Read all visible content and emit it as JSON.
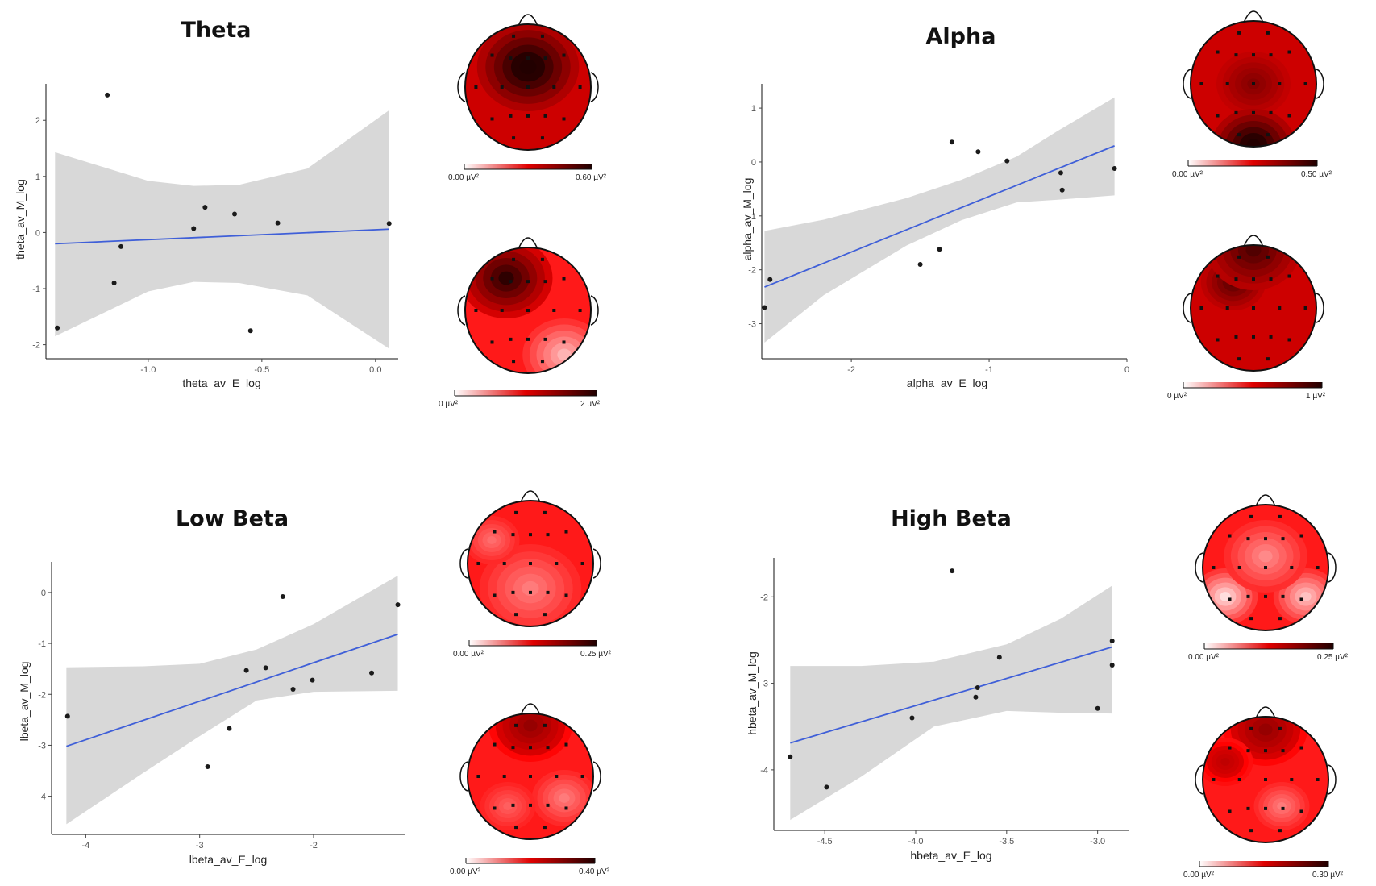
{
  "colors": {
    "ribbon": "#d8d8d8",
    "line": "#3f5fd8",
    "point": "#1a1a1a",
    "map_high": "#2a0000",
    "map_mid": "#e00000",
    "map_low": "#ffffff"
  },
  "chart_data": [
    {
      "type": "scatter",
      "title": "Theta",
      "xlabel": "theta_av_E_log",
      "ylabel": "theta_av_M_log",
      "xlim": [
        -1.45,
        0.1
      ],
      "ylim": [
        -2.25,
        2.65
      ],
      "xticks": [
        -1.0,
        -0.5,
        0.0
      ],
      "xtick_labels": [
        "-1.0",
        "-0.5",
        "0.0"
      ],
      "yticks": [
        -2,
        -1,
        0,
        1,
        2
      ],
      "ytick_labels": [
        "-2",
        "-1",
        "0",
        "1",
        "2"
      ],
      "points": [
        {
          "x": -1.4,
          "y": -1.7
        },
        {
          "x": -1.18,
          "y": 2.45
        },
        {
          "x": -1.15,
          "y": -0.9
        },
        {
          "x": -1.12,
          "y": -0.25
        },
        {
          "x": -0.8,
          "y": 0.07
        },
        {
          "x": -0.75,
          "y": 0.45
        },
        {
          "x": -0.62,
          "y": 0.33
        },
        {
          "x": -0.55,
          "y": -1.75
        },
        {
          "x": -0.43,
          "y": 0.17
        },
        {
          "x": 0.06,
          "y": 0.16
        }
      ],
      "fit": [
        {
          "x": -1.41,
          "y": -0.2
        },
        {
          "x": 0.06,
          "y": 0.06
        }
      ],
      "band": [
        {
          "x": -1.41,
          "lo": -1.85,
          "hi": 1.43
        },
        {
          "x": -1.0,
          "lo": -1.05,
          "hi": 0.92
        },
        {
          "x": -0.8,
          "lo": -0.88,
          "hi": 0.83
        },
        {
          "x": -0.6,
          "lo": -0.9,
          "hi": 0.85
        },
        {
          "x": -0.3,
          "lo": -1.12,
          "hi": 1.14
        },
        {
          "x": 0.06,
          "lo": -2.07,
          "hi": 2.18
        }
      ],
      "maps": [
        {
          "colorbar": [
            "0.00 µV²",
            "0.60 µV²"
          ]
        },
        {
          "colorbar": [
            "0 µV²",
            "2 µV²"
          ]
        }
      ]
    },
    {
      "type": "scatter",
      "title": "Alpha",
      "xlabel": "alpha_av_E_log",
      "ylabel": "alpha_av_M_log",
      "xlim": [
        -2.65,
        0.0
      ],
      "ylim": [
        -3.65,
        1.45
      ],
      "xticks": [
        -2,
        -1,
        0
      ],
      "xtick_labels": [
        "-2",
        "-1",
        "0"
      ],
      "yticks": [
        -3,
        -2,
        -1,
        0,
        1
      ],
      "ytick_labels": [
        "-3",
        "-2",
        "-1",
        "0",
        "1"
      ],
      "points": [
        {
          "x": -2.63,
          "y": -2.7
        },
        {
          "x": -2.59,
          "y": -2.18
        },
        {
          "x": -1.5,
          "y": -1.9
        },
        {
          "x": -1.36,
          "y": -1.62
        },
        {
          "x": -1.27,
          "y": 0.37
        },
        {
          "x": -1.08,
          "y": 0.19
        },
        {
          "x": -0.87,
          "y": 0.02
        },
        {
          "x": -0.48,
          "y": -0.2
        },
        {
          "x": -0.47,
          "y": -0.52
        },
        {
          "x": -0.09,
          "y": -0.12
        }
      ],
      "fit": [
        {
          "x": -2.63,
          "y": -2.32
        },
        {
          "x": -0.09,
          "y": 0.3
        }
      ],
      "band": [
        {
          "x": -2.63,
          "lo": -3.35,
          "hi": -1.28
        },
        {
          "x": -2.2,
          "lo": -2.47,
          "hi": -1.07
        },
        {
          "x": -1.6,
          "lo": -1.55,
          "hi": -0.67
        },
        {
          "x": -1.2,
          "lo": -1.08,
          "hi": -0.33
        },
        {
          "x": -0.8,
          "lo": -0.75,
          "hi": 0.1
        },
        {
          "x": -0.5,
          "lo": -0.7,
          "hi": 0.58
        },
        {
          "x": -0.09,
          "lo": -0.62,
          "hi": 1.2
        }
      ],
      "maps": [
        {
          "colorbar": [
            "0.00 µV²",
            "0.50 µV²"
          ]
        },
        {
          "colorbar": [
            "0 µV²",
            "1 µV²"
          ]
        }
      ]
    },
    {
      "type": "scatter",
      "title": "Low Beta",
      "xlabel": "lbeta_av_E_log",
      "ylabel": "lbeta_av_M_log",
      "xlim": [
        -4.3,
        -1.2
      ],
      "ylim": [
        -4.75,
        0.6
      ],
      "xticks": [
        -4,
        -3,
        -2
      ],
      "xtick_labels": [
        "-4",
        "-3",
        "-2"
      ],
      "yticks": [
        -4,
        -3,
        -2,
        -1,
        0
      ],
      "ytick_labels": [
        "-4",
        "-3",
        "-2",
        "-1",
        "0"
      ],
      "points": [
        {
          "x": -4.16,
          "y": -2.43
        },
        {
          "x": -2.93,
          "y": -3.42
        },
        {
          "x": -2.74,
          "y": -2.67
        },
        {
          "x": -2.59,
          "y": -1.53
        },
        {
          "x": -2.42,
          "y": -1.48
        },
        {
          "x": -2.27,
          "y": -0.08
        },
        {
          "x": -2.18,
          "y": -1.9
        },
        {
          "x": -2.01,
          "y": -1.72
        },
        {
          "x": -1.49,
          "y": -1.58
        },
        {
          "x": -1.26,
          "y": -0.24
        }
      ],
      "fit": [
        {
          "x": -4.17,
          "y": -3.02
        },
        {
          "x": -1.26,
          "y": -0.82
        }
      ],
      "band": [
        {
          "x": -4.17,
          "lo": -4.55,
          "hi": -1.47
        },
        {
          "x": -3.5,
          "lo": -3.55,
          "hi": -1.45
        },
        {
          "x": -3.0,
          "lo": -2.82,
          "hi": -1.4
        },
        {
          "x": -2.5,
          "lo": -2.12,
          "hi": -1.12
        },
        {
          "x": -2.0,
          "lo": -1.95,
          "hi": -0.62
        },
        {
          "x": -1.26,
          "lo": -1.93,
          "hi": 0.33
        }
      ],
      "maps": [
        {
          "colorbar": [
            "0.00 µV²",
            "0.25 µV²"
          ]
        },
        {
          "colorbar": [
            "0.00 µV²",
            "0.40 µV²"
          ]
        }
      ]
    },
    {
      "type": "scatter",
      "title": "High Beta",
      "xlabel": "hbeta_av_E_log",
      "ylabel": "hbeta_av_M_log",
      "xlim": [
        -4.78,
        -2.83
      ],
      "ylim": [
        -4.7,
        -1.55
      ],
      "xticks": [
        -4.5,
        -4.0,
        -3.5,
        -3.0
      ],
      "xtick_labels": [
        "-4.5",
        "-4.0",
        "-3.5",
        "-3.0"
      ],
      "yticks": [
        -4,
        -3,
        -2
      ],
      "ytick_labels": [
        "-4",
        "-3",
        "-2"
      ],
      "points": [
        {
          "x": -4.69,
          "y": -3.85
        },
        {
          "x": -4.49,
          "y": -4.2
        },
        {
          "x": -4.02,
          "y": -3.4
        },
        {
          "x": -3.8,
          "y": -1.7
        },
        {
          "x": -3.67,
          "y": -3.16
        },
        {
          "x": -3.66,
          "y": -3.05
        },
        {
          "x": -3.54,
          "y": -2.7
        },
        {
          "x": -3.0,
          "y": -3.29
        },
        {
          "x": -2.92,
          "y": -2.51
        },
        {
          "x": -2.92,
          "y": -2.79
        }
      ],
      "fit": [
        {
          "x": -4.69,
          "y": -3.69
        },
        {
          "x": -2.92,
          "y": -2.58
        }
      ],
      "band": [
        {
          "x": -4.69,
          "lo": -4.58,
          "hi": -2.8
        },
        {
          "x": -4.3,
          "lo": -4.08,
          "hi": -2.8
        },
        {
          "x": -3.9,
          "lo": -3.5,
          "hi": -2.75
        },
        {
          "x": -3.5,
          "lo": -3.32,
          "hi": -2.55
        },
        {
          "x": -3.2,
          "lo": -3.34,
          "hi": -2.25
        },
        {
          "x": -2.92,
          "lo": -3.35,
          "hi": -1.87
        }
      ],
      "maps": [
        {
          "colorbar": [
            "0.00 µV²",
            "0.25 µV²"
          ]
        },
        {
          "colorbar": [
            "0.00 µV²",
            "0.30 µV²"
          ]
        }
      ]
    }
  ]
}
